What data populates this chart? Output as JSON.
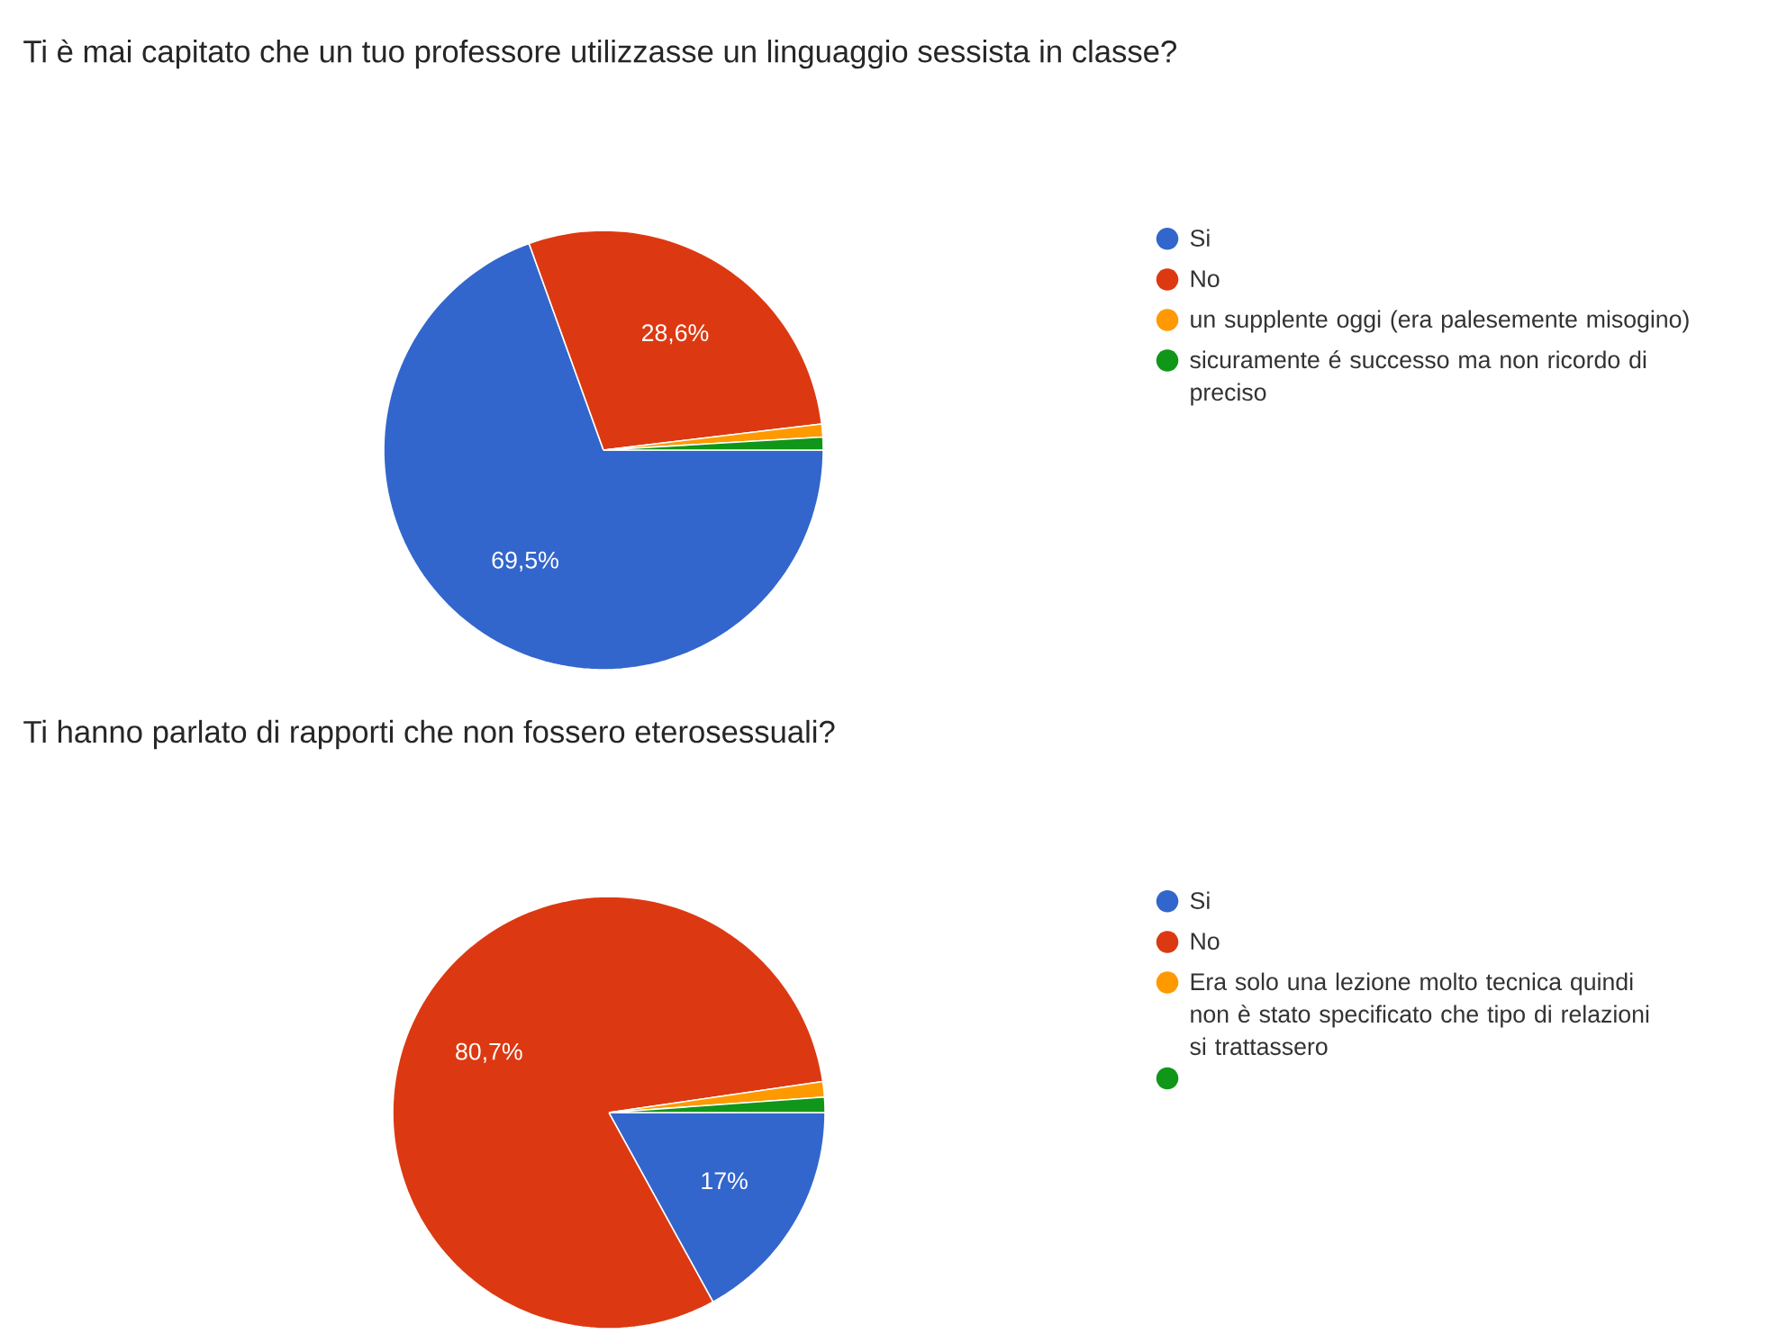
{
  "chart_data": [
    {
      "type": "pie",
      "title": "Ti è mai capitato che un tuo professore utilizzasse un linguaggio sessista in classe?",
      "categories": [
        "Si",
        "No",
        "un supplente oggi (era palesemente misogino)",
        "sicuramente é successo ma non ricordo di preciso"
      ],
      "values": [
        69.5,
        28.6,
        0.95,
        0.95
      ],
      "colors": [
        "#3366cc",
        "#dc3912",
        "#ff9900",
        "#109618"
      ],
      "value_labels": [
        "69,5%",
        "28,6%",
        null,
        null
      ],
      "legend": "right"
    },
    {
      "type": "pie",
      "title": "Ti hanno parlato di rapporti che non fossero eterosessuali?",
      "categories": [
        "Si",
        "No",
        "Era solo una lezione molto tecnica quindi non è stato specificato che tipo di relazioni si trattassero",
        null
      ],
      "values": [
        17,
        80.7,
        1.15,
        1.15
      ],
      "colors": [
        "#3366cc",
        "#dc3912",
        "#ff9900",
        "#109618"
      ],
      "value_labels": [
        "17%",
        "80,7%",
        null,
        null
      ],
      "legend": "right"
    }
  ]
}
